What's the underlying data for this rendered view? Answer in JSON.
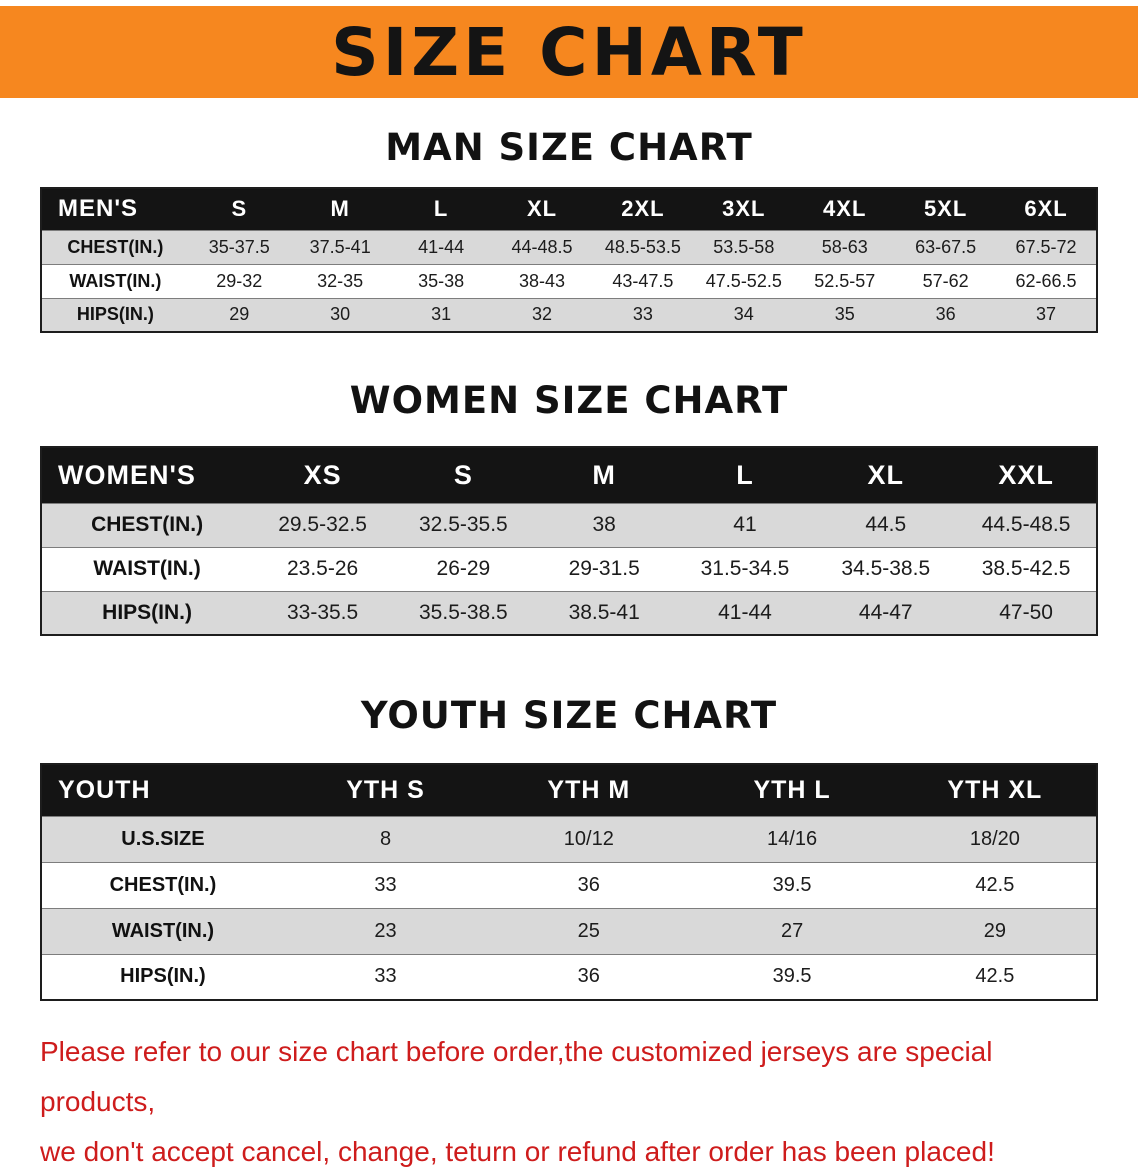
{
  "banner": {
    "title": "SIZE CHART",
    "bg_color": "#f6871f",
    "text_color": "#141414"
  },
  "sections": [
    {
      "heading": "MAN SIZE CHART"
    },
    {
      "heading": "WOMEN SIZE CHART"
    },
    {
      "heading": "YOUTH SIZE CHART"
    }
  ],
  "chart_data": [
    {
      "type": "table",
      "title": "MAN SIZE CHART",
      "header": [
        "MEN'S",
        "S",
        "M",
        "L",
        "XL",
        "2XL",
        "3XL",
        "4XL",
        "5XL",
        "6XL"
      ],
      "rows": [
        [
          "CHEST(IN.)",
          "35-37.5",
          "37.5-41",
          "41-44",
          "44-48.5",
          "48.5-53.5",
          "53.5-58",
          "58-63",
          "63-67.5",
          "67.5-72"
        ],
        [
          "WAIST(IN.)",
          "29-32",
          "32-35",
          "35-38",
          "38-43",
          "43-47.5",
          "47.5-52.5",
          "52.5-57",
          "57-62",
          "62-66.5"
        ],
        [
          "HIPS(IN.)",
          "29",
          "30",
          "31",
          "32",
          "33",
          "34",
          "35",
          "36",
          "37"
        ]
      ]
    },
    {
      "type": "table",
      "title": "WOMEN SIZE CHART",
      "header": [
        "WOMEN'S",
        "XS",
        "S",
        "M",
        "L",
        "XL",
        "XXL"
      ],
      "rows": [
        [
          "CHEST(IN.)",
          "29.5-32.5",
          "32.5-35.5",
          "38",
          "41",
          "44.5",
          "44.5-48.5"
        ],
        [
          "WAIST(IN.)",
          "23.5-26",
          "26-29",
          "29-31.5",
          "31.5-34.5",
          "34.5-38.5",
          "38.5-42.5"
        ],
        [
          "HIPS(IN.)",
          "33-35.5",
          "35.5-38.5",
          "38.5-41",
          "41-44",
          "44-47",
          "47-50"
        ]
      ]
    },
    {
      "type": "table",
      "title": "YOUTH SIZE CHART",
      "header": [
        "YOUTH",
        "YTH S",
        "YTH M",
        "YTH L",
        "YTH XL"
      ],
      "rows": [
        [
          "U.S.SIZE",
          "8",
          "10/12",
          "14/16",
          "18/20"
        ],
        [
          "CHEST(IN.)",
          "33",
          "36",
          "39.5",
          "42.5"
        ],
        [
          "WAIST(IN.)",
          "23",
          "25",
          "27",
          "29"
        ],
        [
          "HIPS(IN.)",
          "33",
          "36",
          "39.5",
          "42.5"
        ]
      ]
    }
  ],
  "disclaimer": {
    "line1": "Please refer to our size chart before order,the customized jerseys are special products,",
    "line2": "we don't accept cancel, change, teturn or refund after order has been placed!",
    "color": "#ce1c1c"
  },
  "colors": {
    "banner_bg": "#f6871f",
    "table_header_bg": "#141414",
    "stripe_row_bg": "#d9d9d9",
    "table_border": "#1d1d1d"
  }
}
